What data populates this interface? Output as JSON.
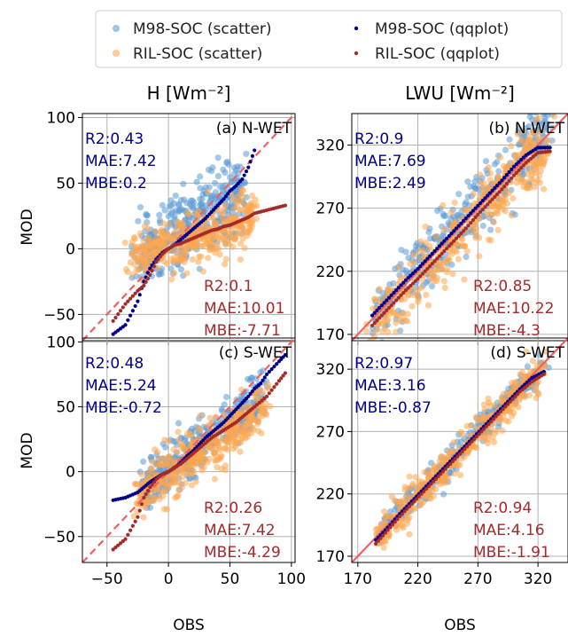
{
  "legend": {
    "items": [
      {
        "label": "M98-SOC (scatter)",
        "color": "#5b9bd5",
        "kind": "scatter"
      },
      {
        "label": "RIL-SOC (scatter)",
        "color": "#ffa64d",
        "kind": "scatter"
      },
      {
        "label": "M98-SOC (qqplot)",
        "color": "#00008b",
        "kind": "qqplot"
      },
      {
        "label": "RIL-SOC (qqplot)",
        "color": "#a52a2a",
        "kind": "qqplot"
      }
    ]
  },
  "column_titles": [
    "H [Wm⁻²]",
    "LWU [Wm⁻²]"
  ],
  "xlabel": "OBS",
  "ylabel": "MOD",
  "colors": {
    "m98_scatter": "#5b9bd5",
    "ril_scatter": "#ffa64d",
    "m98_qq": "#00008b",
    "ril_qq": "#a52a2a",
    "m98_text": "#00008b",
    "ril_text": "#a52a2a",
    "identity_line": "#f06060",
    "grid": "#b0b0b0"
  },
  "chart_data": [
    {
      "type": "scatter",
      "panel": "(a) N-WET",
      "xlim": [
        -70,
        103
      ],
      "ylim": [
        -70,
        103
      ],
      "xticks": [
        -50,
        0,
        50,
        100
      ],
      "yticks": [
        -50,
        0,
        50,
        100
      ],
      "xticklabels": [
        "",
        "",
        "",
        ""
      ],
      "yticklabels": [
        "−50",
        "0",
        "50",
        "100"
      ],
      "m98_stats": [
        "R2:0.43",
        "MAE:7.42",
        "MBE:0.2"
      ],
      "ril_stats": [
        "R2:0.1",
        "MAE:10.01",
        "MBE:-7.71"
      ],
      "m98_qq": [
        [
          -45,
          -65
        ],
        [
          -35,
          -58
        ],
        [
          -25,
          -40
        ],
        [
          -20,
          -25
        ],
        [
          -15,
          -15
        ],
        [
          -10,
          -8
        ],
        [
          -5,
          -3
        ],
        [
          0,
          0
        ],
        [
          5,
          3
        ],
        [
          10,
          7
        ],
        [
          15,
          11
        ],
        [
          20,
          15
        ],
        [
          25,
          19
        ],
        [
          30,
          23
        ],
        [
          35,
          28
        ],
        [
          40,
          33
        ],
        [
          45,
          38
        ],
        [
          50,
          44
        ],
        [
          55,
          48
        ],
        [
          60,
          53
        ],
        [
          65,
          62
        ],
        [
          70,
          75
        ]
      ],
      "ril_qq": [
        [
          -45,
          -55
        ],
        [
          -35,
          -42
        ],
        [
          -25,
          -32
        ],
        [
          -20,
          -28
        ],
        [
          -15,
          -20
        ],
        [
          -10,
          -10
        ],
        [
          -5,
          -4
        ],
        [
          0,
          0
        ],
        [
          5,
          3
        ],
        [
          10,
          4
        ],
        [
          15,
          6
        ],
        [
          20,
          8
        ],
        [
          25,
          10
        ],
        [
          30,
          12
        ],
        [
          35,
          14
        ],
        [
          40,
          15
        ],
        [
          45,
          17
        ],
        [
          50,
          18
        ],
        [
          55,
          20
        ],
        [
          60,
          22
        ],
        [
          65,
          24
        ],
        [
          70,
          27
        ],
        [
          95,
          33
        ]
      ],
      "m98_cloud": {
        "xmin": -25,
        "xmax": 60,
        "slope": 0.6,
        "intercept": 8,
        "spread": 14,
        "n": 380
      },
      "ril_cloud": {
        "xmin": -30,
        "xmax": 70,
        "slope": 0.3,
        "intercept": 2,
        "spread": 10,
        "n": 380
      }
    },
    {
      "type": "scatter",
      "panel": "(b) N-WET",
      "xlim": [
        165,
        345
      ],
      "ylim": [
        165,
        345
      ],
      "xticks": [
        170,
        220,
        270,
        320
      ],
      "yticks": [
        170,
        220,
        270,
        320
      ],
      "xticklabels": [
        "",
        "",
        "",
        ""
      ],
      "yticklabels": [
        "170",
        "220",
        "270",
        "320"
      ],
      "m98_stats": [
        "R2:0.9",
        "MAE:7.69",
        "MBE:2.49"
      ],
      "ril_stats": [
        "R2:0.85",
        "MAE:10.22",
        "MBE:-4.3"
      ],
      "m98_qq": [
        [
          182,
          185
        ],
        [
          190,
          193
        ],
        [
          200,
          203
        ],
        [
          210,
          213
        ],
        [
          220,
          222
        ],
        [
          230,
          232
        ],
        [
          240,
          242
        ],
        [
          250,
          252
        ],
        [
          260,
          262
        ],
        [
          270,
          272
        ],
        [
          280,
          282
        ],
        [
          290,
          292
        ],
        [
          300,
          303
        ],
        [
          310,
          312
        ],
        [
          320,
          318
        ],
        [
          330,
          318
        ]
      ],
      "ril_qq": [
        [
          182,
          177
        ],
        [
          190,
          185
        ],
        [
          200,
          195
        ],
        [
          210,
          205
        ],
        [
          220,
          214
        ],
        [
          230,
          224
        ],
        [
          240,
          234
        ],
        [
          250,
          244
        ],
        [
          260,
          254
        ],
        [
          270,
          265
        ],
        [
          280,
          275
        ],
        [
          290,
          285
        ],
        [
          300,
          296
        ],
        [
          310,
          306
        ],
        [
          320,
          314
        ],
        [
          330,
          315
        ]
      ],
      "m98_cloud": {
        "xmin": 180,
        "xmax": 330,
        "slope": 1.0,
        "intercept": 3,
        "spread": 12,
        "n": 380
      },
      "ril_cloud": {
        "xmin": 180,
        "xmax": 330,
        "slope": 1.0,
        "intercept": -5,
        "spread": 14,
        "n": 420
      }
    },
    {
      "type": "scatter",
      "panel": "(c) S-WET",
      "xlim": [
        -70,
        103
      ],
      "ylim": [
        -70,
        103
      ],
      "xticks": [
        -50,
        0,
        50,
        100
      ],
      "yticks": [
        -50,
        0,
        50,
        100
      ],
      "xticklabels": [
        "−50",
        "0",
        "50",
        "100"
      ],
      "yticklabels": [
        "−50",
        "0",
        "50",
        "100"
      ],
      "m98_stats": [
        "R2:0.48",
        "MAE:5.24",
        "MBE:-0.72"
      ],
      "ril_stats": [
        "R2:0.26",
        "MAE:7.42",
        "MBE:-4.29"
      ],
      "m98_qq": [
        [
          -45,
          -22
        ],
        [
          -35,
          -20
        ],
        [
          -25,
          -16
        ],
        [
          -20,
          -12
        ],
        [
          -15,
          -8
        ],
        [
          -10,
          -5
        ],
        [
          -5,
          -2
        ],
        [
          0,
          0
        ],
        [
          5,
          3
        ],
        [
          10,
          7
        ],
        [
          15,
          12
        ],
        [
          20,
          16
        ],
        [
          25,
          21
        ],
        [
          30,
          26
        ],
        [
          35,
          30
        ],
        [
          40,
          34
        ],
        [
          45,
          38
        ],
        [
          50,
          43
        ],
        [
          55,
          48
        ],
        [
          60,
          53
        ],
        [
          65,
          58
        ],
        [
          70,
          64
        ],
        [
          75,
          68
        ],
        [
          80,
          75
        ],
        [
          90,
          85
        ],
        [
          95,
          90
        ]
      ],
      "ril_qq": [
        [
          -45,
          -60
        ],
        [
          -35,
          -52
        ],
        [
          -25,
          -35
        ],
        [
          -20,
          -20
        ],
        [
          -15,
          -12
        ],
        [
          -10,
          -6
        ],
        [
          -5,
          -2
        ],
        [
          0,
          0
        ],
        [
          5,
          3
        ],
        [
          10,
          6
        ],
        [
          15,
          10
        ],
        [
          20,
          14
        ],
        [
          25,
          18
        ],
        [
          30,
          22
        ],
        [
          35,
          26
        ],
        [
          40,
          29
        ],
        [
          45,
          32
        ],
        [
          50,
          35
        ],
        [
          55,
          38
        ],
        [
          60,
          42
        ],
        [
          65,
          46
        ],
        [
          70,
          50
        ],
        [
          80,
          58
        ],
        [
          90,
          70
        ],
        [
          95,
          76
        ]
      ],
      "m98_cloud": {
        "xmin": -20,
        "xmax": 80,
        "slope": 0.75,
        "intercept": 2,
        "spread": 9,
        "n": 380
      },
      "ril_cloud": {
        "xmin": -25,
        "xmax": 80,
        "slope": 0.65,
        "intercept": -2,
        "spread": 10,
        "n": 420
      }
    },
    {
      "type": "scatter",
      "panel": "(d) S-WET",
      "xlim": [
        165,
        345
      ],
      "ylim": [
        165,
        345
      ],
      "xticks": [
        170,
        220,
        270,
        320
      ],
      "yticks": [
        170,
        220,
        270,
        320
      ],
      "xticklabels": [
        "170",
        "220",
        "270",
        "320"
      ],
      "yticklabels": [
        "170",
        "220",
        "270",
        "320"
      ],
      "m98_stats": [
        "R2:0.97",
        "MAE:3.16",
        "MBE:-0.87"
      ],
      "ril_stats": [
        "R2:0.94",
        "MAE:4.16",
        "MBE:-1.91"
      ],
      "m98_qq": [
        [
          185,
          183
        ],
        [
          195,
          193
        ],
        [
          205,
          204
        ],
        [
          215,
          214
        ],
        [
          225,
          224
        ],
        [
          235,
          234
        ],
        [
          245,
          244
        ],
        [
          255,
          254
        ],
        [
          265,
          264
        ],
        [
          275,
          274
        ],
        [
          285,
          284
        ],
        [
          295,
          294
        ],
        [
          305,
          304
        ],
        [
          315,
          313
        ],
        [
          325,
          318
        ]
      ],
      "ril_qq": [
        [
          185,
          180
        ],
        [
          195,
          191
        ],
        [
          205,
          202
        ],
        [
          215,
          212
        ],
        [
          225,
          222
        ],
        [
          235,
          232
        ],
        [
          245,
          242
        ],
        [
          255,
          252
        ],
        [
          265,
          262
        ],
        [
          275,
          272
        ],
        [
          285,
          282
        ],
        [
          295,
          292
        ],
        [
          305,
          302
        ],
        [
          315,
          310
        ],
        [
          325,
          316
        ]
      ],
      "m98_cloud": {
        "xmin": 185,
        "xmax": 325,
        "slope": 1.0,
        "intercept": 0,
        "spread": 6,
        "n": 320
      },
      "ril_cloud": {
        "xmin": 185,
        "xmax": 325,
        "slope": 1.0,
        "intercept": -2,
        "spread": 8,
        "n": 380
      }
    }
  ]
}
